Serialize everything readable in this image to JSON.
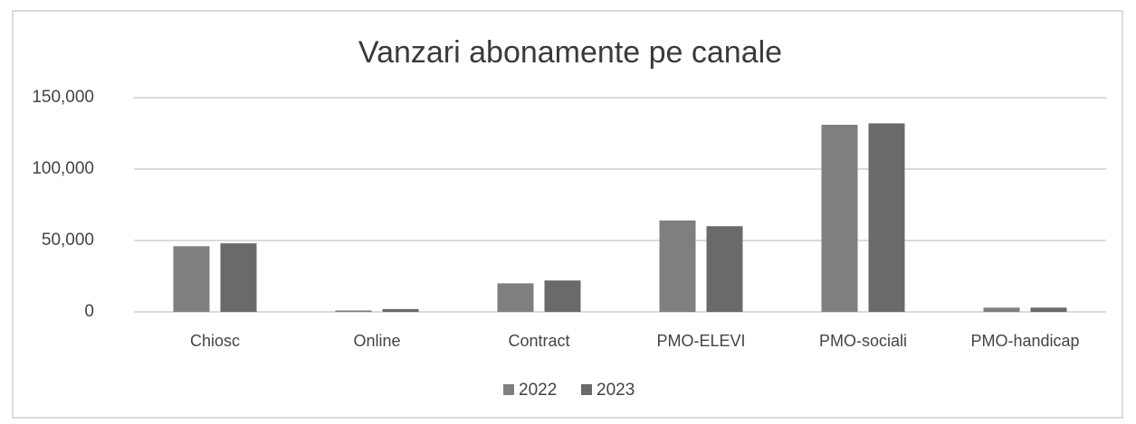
{
  "chart_data": {
    "type": "bar",
    "title": "Vanzari abonamente pe canale",
    "categories": [
      "Chiosc",
      "Online",
      "Contract",
      "PMO-ELEVI",
      "PMO-sociali",
      "PMO-handicap"
    ],
    "series": [
      {
        "name": "2022",
        "color": "#7f7f7f",
        "values": [
          46000,
          1000,
          20000,
          64000,
          131000,
          3000
        ]
      },
      {
        "name": "2023",
        "color": "#6a6a6a",
        "values": [
          48000,
          2000,
          22000,
          60000,
          132000,
          3000
        ]
      }
    ],
    "ylim": [
      0,
      150000
    ],
    "yticks": [
      0,
      {
        "value": 50000,
        "label": "50,000"
      },
      {
        "value": 100000,
        "label": "100,000"
      },
      {
        "value": 150000,
        "label": "150,000"
      }
    ],
    "grid": true,
    "legend": "bottom"
  }
}
